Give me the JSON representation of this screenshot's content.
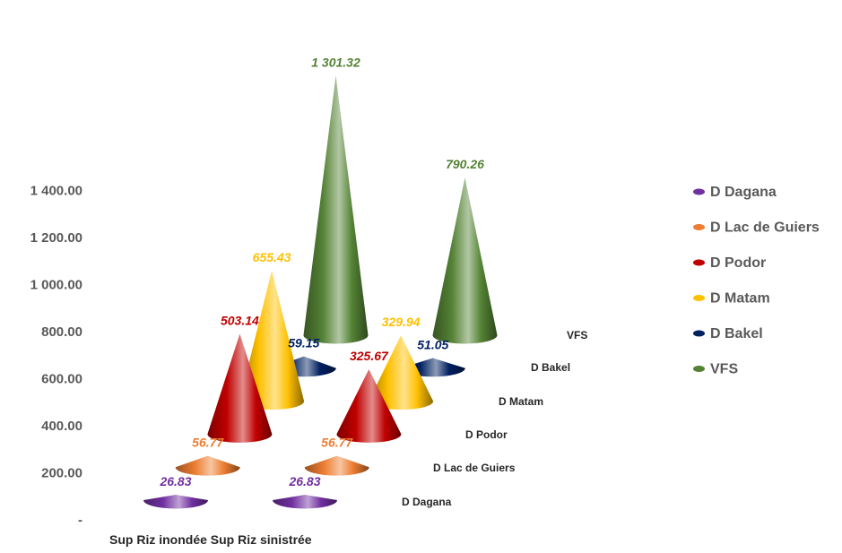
{
  "chart_data": {
    "type": "3d-cone",
    "categories": [
      "Sup Riz inondée",
      "Sup Riz sinistrée"
    ],
    "y_ticks": [
      "1 400.00",
      "1 200.00",
      "1 000.00",
      "800.00",
      "600.00",
      "400.00",
      "200.00",
      "-"
    ],
    "ylim": [
      0,
      1400
    ],
    "series": [
      {
        "name": "D Dagana",
        "color": "#7030A0",
        "values": [
          26.83,
          26.83
        ],
        "labels": [
          "26.83",
          "26.83"
        ]
      },
      {
        "name": "D Lac de Guiers",
        "color": "#ED7D31",
        "values": [
          56.77,
          56.77
        ],
        "labels": [
          "56.77",
          "56.77"
        ]
      },
      {
        "name": "D Podor",
        "color": "#C00000",
        "values": [
          503.14,
          325.67
        ],
        "labels": [
          "503.14",
          "325.67"
        ]
      },
      {
        "name": "D Matam",
        "color": "#FFC000",
        "values": [
          655.43,
          329.94
        ],
        "labels": [
          "655.43",
          "329.94"
        ]
      },
      {
        "name": "D Bakel",
        "color": "#002060",
        "values": [
          59.15,
          51.05
        ],
        "labels": [
          "59.15",
          "51.05"
        ]
      },
      {
        "name": "VFS",
        "color": "#548235",
        "values": [
          1301.32,
          790.26
        ],
        "labels": [
          "1 301.32",
          "790.26"
        ]
      }
    ],
    "depth_labels": [
      "D Dagana",
      "D Lac de Guiers",
      "D Podor",
      "D Matam",
      "D Bakel",
      "VFS"
    ],
    "legend": "right",
    "grid": false
  }
}
